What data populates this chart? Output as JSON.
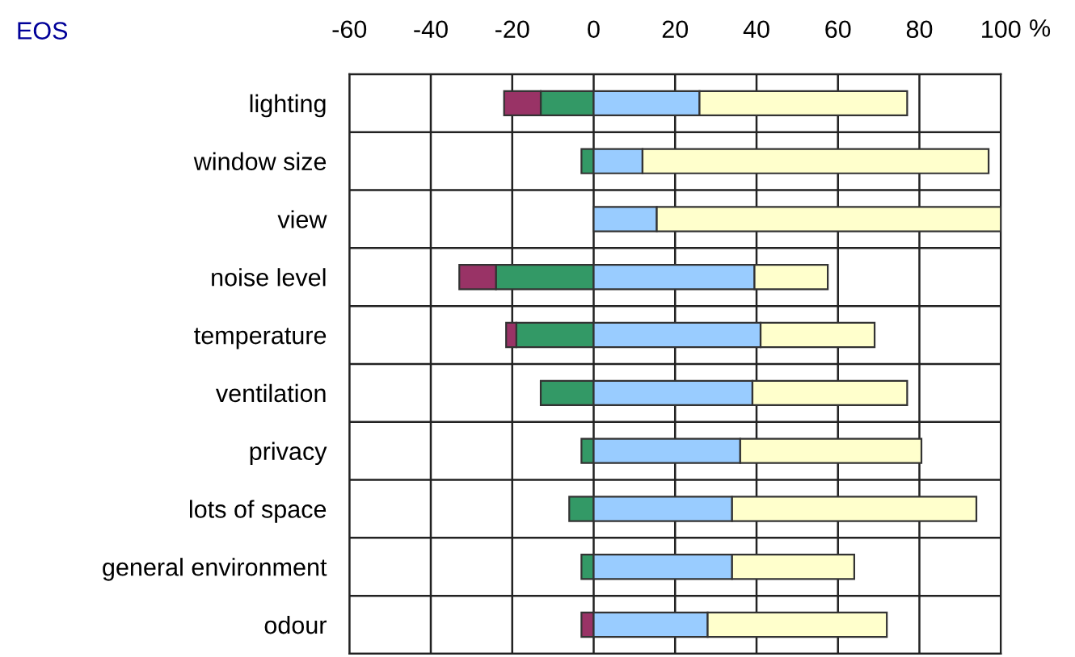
{
  "chart_data": {
    "type": "bar",
    "orientation": "horizontal",
    "stacked": true,
    "title": "EOS",
    "xlabel": "%",
    "categories": [
      "lighting",
      "window size",
      "view",
      "noise level",
      "temperature",
      "ventilation",
      "privacy",
      "lots of space",
      "general environment",
      "odour"
    ],
    "series": [
      {
        "color": "#339966",
        "values": [
          -13,
          -3,
          null,
          -24,
          -19,
          -13,
          -3,
          -6,
          -3,
          null
        ]
      },
      {
        "color": "#993366",
        "values": [
          -9,
          null,
          null,
          -9,
          -2.5,
          null,
          null,
          null,
          null,
          -3
        ]
      },
      {
        "color": "#99ccff",
        "values": [
          26,
          12,
          15.5,
          39.5,
          41,
          39,
          36,
          34,
          34,
          28
        ]
      },
      {
        "color": "#ffffcc",
        "values": [
          51,
          85,
          84.5,
          18,
          28,
          38,
          44.5,
          60,
          30,
          44
        ]
      }
    ],
    "xlim": [
      -60,
      100
    ],
    "xticks": [
      -60,
      -40,
      -20,
      0,
      20,
      40,
      60,
      80,
      100
    ],
    "grid": true
  }
}
